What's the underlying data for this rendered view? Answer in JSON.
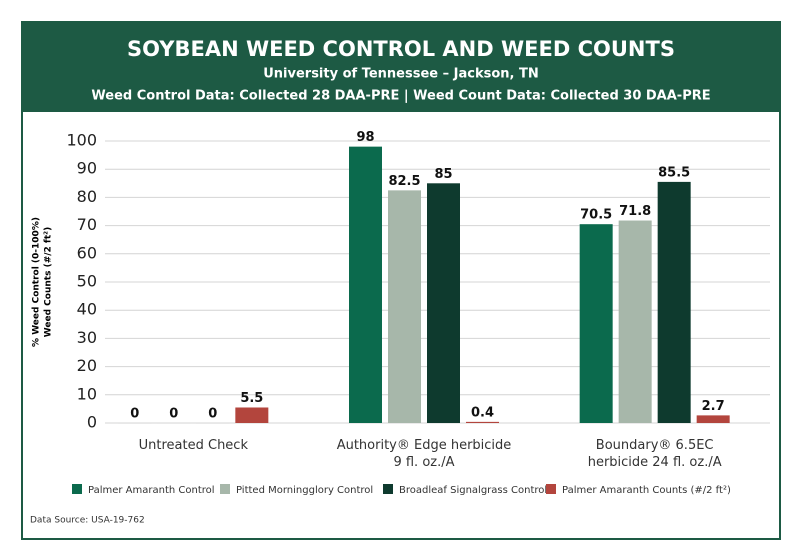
{
  "chart_data": {
    "type": "bar",
    "title": "SOYBEAN WEED CONTROL AND WEED COUNTS",
    "subtitle": [
      "University of Tennessee – Jackson, TN",
      "Weed Control Data: Collected 28 DAA-PRE | Weed Count Data: Collected 30 DAA-PRE"
    ],
    "y_label": [
      "% Weed Control (0-100%)",
      "Weed Counts (#/2 ft²)"
    ],
    "categories": [
      "Untreated Check",
      "Authority® Edge herbicide 9 fl. oz./A",
      "Boundary® 6.5EC herbicide 24 fl. oz./A"
    ],
    "series": [
      {
        "name": "Palmer Amaranth Control",
        "color": "#0b6a4d",
        "values": [
          0,
          98,
          70.5
        ]
      },
      {
        "name": "Pitted Morningglory Control",
        "color": "#a7b7aa",
        "values": [
          0,
          82.5,
          71.8
        ]
      },
      {
        "name": "Broadleaf Signalgrass Control",
        "color": "#0e3a2e",
        "values": [
          0,
          85,
          85.5
        ]
      },
      {
        "name": "Palmer Amaranth Counts (#/2 ft²)",
        "color": "#b3453d",
        "values": [
          5.5,
          0.4,
          2.7
        ]
      }
    ],
    "ylim": [
      0,
      100
    ],
    "yticks": [
      0,
      10,
      20,
      30,
      40,
      50,
      60,
      70,
      80,
      90,
      100
    ],
    "grid": true,
    "source": "Data Source: USA-19-762"
  }
}
